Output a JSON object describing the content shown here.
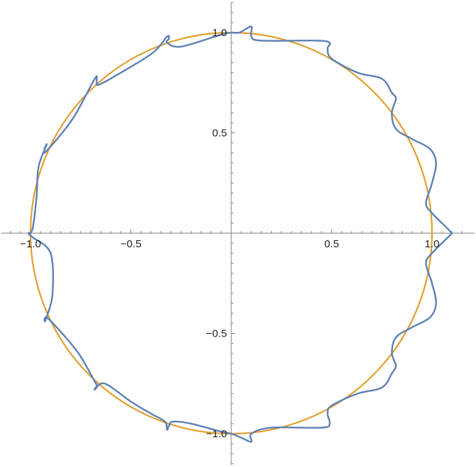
{
  "chart_data": {
    "type": "line",
    "title": "",
    "xlabel": "",
    "ylabel": "",
    "xlim": [
      -1.1,
      1.15
    ],
    "ylim": [
      -1.15,
      1.15
    ],
    "aspect": "equal",
    "grid": false,
    "legend": "none",
    "x_ticks": [
      {
        "value": -1.0,
        "label": "−1.0"
      },
      {
        "value": -0.5,
        "label": "−0.5"
      },
      {
        "value": 0.5,
        "label": "0.5"
      },
      {
        "value": 1.0,
        "label": "1.0"
      }
    ],
    "y_ticks": [
      {
        "value": 1.0,
        "label": "1.0"
      },
      {
        "value": 0.5,
        "label": "0.5"
      },
      {
        "value": -0.5,
        "label": "−0.5"
      },
      {
        "value": -1.0,
        "label": "−1.0"
      }
    ],
    "series": [
      {
        "kind": "unit-circle",
        "color": "#E0A030",
        "x": [
          1.0,
          0.866,
          0.5,
          0.0,
          -0.5,
          -0.866,
          -1.0,
          -0.866,
          -0.5,
          0.0,
          0.5,
          0.866,
          1.0
        ],
        "y": [
          0.0,
          0.5,
          0.866,
          1.0,
          0.866,
          0.5,
          0.0,
          -0.5,
          -0.866,
          -1.0,
          -0.866,
          -0.5,
          0.0
        ]
      },
      {
        "kind": "perturbed-curve",
        "color": "#5E81B5",
        "points": [
          [
            1.1,
            0.0
          ],
          [
            1.07,
            0.03
          ],
          [
            1.0,
            0.1
          ],
          [
            0.97,
            0.15
          ],
          [
            1.0,
            0.25
          ],
          [
            1.02,
            0.35
          ],
          [
            0.99,
            0.42
          ],
          [
            0.9,
            0.47
          ],
          [
            0.82,
            0.52
          ],
          [
            0.8,
            0.6
          ],
          [
            0.82,
            0.67
          ],
          [
            0.8,
            0.7
          ],
          [
            0.75,
            0.77
          ],
          [
            0.63,
            0.8
          ],
          [
            0.5,
            0.87
          ],
          [
            0.48,
            0.92
          ],
          [
            0.49,
            0.95
          ],
          [
            0.42,
            0.96
          ],
          [
            0.15,
            0.96
          ],
          [
            0.1,
            0.98
          ],
          [
            0.1,
            1.03
          ],
          [
            0.04,
            1.0
          ],
          [
            0.0,
            1.0
          ],
          [
            -0.05,
            0.99
          ],
          [
            -0.25,
            0.93
          ],
          [
            -0.32,
            0.95
          ],
          [
            -0.31,
            0.97
          ],
          [
            -0.32,
            0.98
          ],
          [
            -0.39,
            0.9
          ],
          [
            -0.55,
            0.8
          ],
          [
            -0.66,
            0.74
          ],
          [
            -0.67,
            0.76
          ],
          [
            -0.68,
            0.77
          ],
          [
            -0.79,
            0.57
          ],
          [
            -0.92,
            0.41
          ],
          [
            -0.93,
            0.42
          ],
          [
            -0.92,
            0.44
          ],
          [
            -0.96,
            0.33
          ],
          [
            -0.97,
            0.18
          ],
          [
            -0.99,
            0.02
          ],
          [
            -1.01,
            0.0
          ],
          [
            -0.99,
            -0.02
          ],
          [
            -0.9,
            -0.1
          ],
          [
            -0.89,
            -0.3
          ],
          [
            -0.92,
            -0.42
          ],
          [
            -0.93,
            -0.44
          ],
          [
            -0.92,
            -0.42
          ],
          [
            -0.86,
            -0.48
          ],
          [
            -0.76,
            -0.6
          ],
          [
            -0.68,
            -0.74
          ],
          [
            -0.67,
            -0.76
          ],
          [
            -0.68,
            -0.78
          ],
          [
            -0.63,
            -0.75
          ],
          [
            -0.5,
            -0.84
          ],
          [
            -0.4,
            -0.9
          ],
          [
            -0.33,
            -0.94
          ],
          [
            -0.32,
            -0.98
          ],
          [
            -0.31,
            -0.96
          ],
          [
            -0.29,
            -0.94
          ],
          [
            -0.2,
            -0.95
          ],
          [
            -0.05,
            -0.99
          ],
          [
            0.0,
            -1.0
          ],
          [
            0.05,
            -1.02
          ],
          [
            0.1,
            -1.04
          ],
          [
            0.1,
            -1.0
          ],
          [
            0.2,
            -0.97
          ],
          [
            0.45,
            -0.97
          ],
          [
            0.49,
            -0.95
          ],
          [
            0.48,
            -0.9
          ],
          [
            0.5,
            -0.86
          ],
          [
            0.63,
            -0.8
          ],
          [
            0.75,
            -0.77
          ],
          [
            0.8,
            -0.7
          ],
          [
            0.82,
            -0.66
          ],
          [
            0.8,
            -0.6
          ],
          [
            0.82,
            -0.52
          ],
          [
            0.9,
            -0.47
          ],
          [
            0.99,
            -0.42
          ],
          [
            1.02,
            -0.35
          ],
          [
            1.0,
            -0.25
          ],
          [
            0.97,
            -0.15
          ],
          [
            1.0,
            -0.1
          ],
          [
            1.07,
            -0.03
          ],
          [
            1.1,
            0.0
          ]
        ]
      }
    ]
  }
}
